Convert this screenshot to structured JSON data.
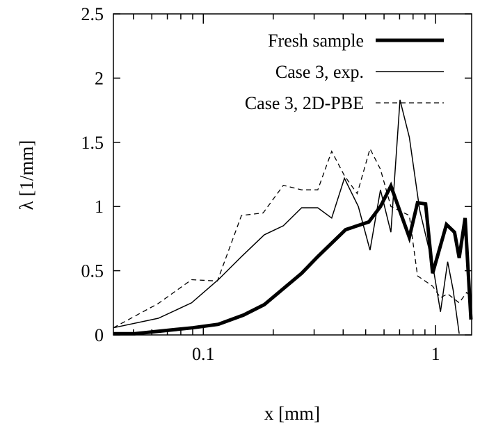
{
  "chart_data": {
    "type": "line",
    "title": "",
    "xlabel": "x [mm]",
    "ylabel": "λ [1/mm]",
    "xscale": "log",
    "xlim": [
      0.041,
      1.43
    ],
    "ylim": [
      0,
      2.5
    ],
    "xticks": [
      {
        "value": 0.1,
        "label": "0.1"
      },
      {
        "value": 1,
        "label": "1"
      }
    ],
    "yticks": [
      {
        "value": 0,
        "label": "0"
      },
      {
        "value": 0.5,
        "label": "0.5"
      },
      {
        "value": 1,
        "label": "1"
      },
      {
        "value": 1.5,
        "label": "1.5"
      },
      {
        "value": 2,
        "label": "2"
      },
      {
        "value": 2.5,
        "label": "2.5"
      }
    ],
    "grid": false,
    "legend_position": "top-right",
    "series": [
      {
        "name": "Fresh sample",
        "style": "thick",
        "x": [
          0.041,
          0.0506,
          0.09,
          0.116,
          0.149,
          0.183,
          0.265,
          0.311,
          0.41,
          0.516,
          0.579,
          0.642,
          0.771,
          0.836,
          0.906,
          0.971,
          1.114,
          1.207,
          1.264,
          1.34,
          1.42
        ],
        "y": [
          0.01,
          0.01,
          0.056,
          0.083,
          0.155,
          0.236,
          0.48,
          0.61,
          0.82,
          0.88,
          1.0,
          1.16,
          0.76,
          1.03,
          1.02,
          0.48,
          0.86,
          0.8,
          0.6,
          0.91,
          0.12
        ]
      },
      {
        "name": "Case 3, exp.",
        "style": "thin",
        "x": [
          0.041,
          0.064,
          0.089,
          0.116,
          0.146,
          0.183,
          0.221,
          0.265,
          0.311,
          0.357,
          0.405,
          0.465,
          0.522,
          0.579,
          0.642,
          0.703,
          0.771,
          0.855,
          0.971,
          1.05,
          1.127,
          1.19,
          1.264
        ],
        "y": [
          0.056,
          0.13,
          0.25,
          0.43,
          0.61,
          0.78,
          0.85,
          0.99,
          0.99,
          0.91,
          1.22,
          1.0,
          0.66,
          1.13,
          0.8,
          1.83,
          1.54,
          0.97,
          0.55,
          0.18,
          0.57,
          0.35,
          0.01
        ]
      },
      {
        "name": "Case 3, 2D-PBE",
        "style": "dashed",
        "x": [
          0.041,
          0.064,
          0.089,
          0.115,
          0.146,
          0.181,
          0.221,
          0.265,
          0.311,
          0.357,
          0.405,
          0.46,
          0.522,
          0.579,
          0.642,
          0.771,
          0.836,
          0.971,
          1.05,
          1.127,
          1.264,
          1.36,
          1.42
        ],
        "y": [
          0.056,
          0.245,
          0.43,
          0.42,
          0.93,
          0.95,
          1.165,
          1.13,
          1.13,
          1.43,
          1.24,
          1.1,
          1.45,
          1.29,
          1.0,
          0.93,
          0.46,
          0.38,
          0.29,
          0.32,
          0.25,
          0.33,
          0.3
        ]
      }
    ]
  }
}
